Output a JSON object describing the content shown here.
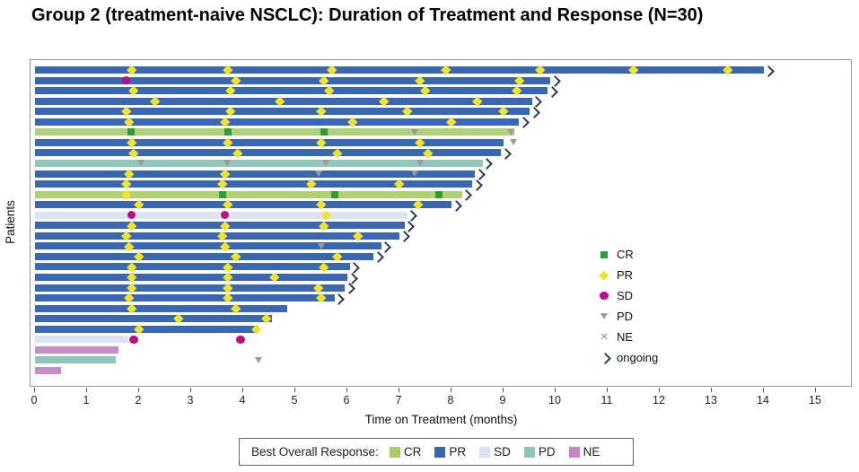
{
  "title": "Group 2 (treatment-naive NSCLC): Duration of Treatment and Response (N=30)",
  "chart_data": {
    "type": "swimmer",
    "title": "Group 2 (treatment-naive NSCLC): Duration of Treatment and Response (N=30)",
    "xlabel": "Time on Treatment (months)",
    "ylabel": "Patients",
    "xlim": [
      0,
      15.7
    ],
    "xticks": [
      0,
      1,
      2,
      3,
      4,
      5,
      6,
      7,
      8,
      9,
      10,
      11,
      12,
      13,
      14,
      15
    ],
    "grid": false,
    "bar_colors": {
      "CR": "#AFCF7B",
      "PR": "#3B67AF",
      "SD": "#DCE4F1",
      "PD": "#93C5BB",
      "NE": "#C48FC4"
    },
    "marker_colors": {
      "CR": "#2E9D38",
      "PR": "#F2E32E",
      "SD": "#BB0D84",
      "PD": "#9A9A9A",
      "arrow": "#2E3B52"
    },
    "marker_legend": {
      "position": "center-right",
      "items": [
        {
          "symbol": "square",
          "label": "CR"
        },
        {
          "symbol": "diamond",
          "label": "PR"
        },
        {
          "symbol": "circle",
          "label": "SD"
        },
        {
          "symbol": "triangle",
          "label": "PD"
        },
        {
          "symbol": "cross",
          "label": "NE"
        },
        {
          "symbol": "chevron",
          "label": "ongoing"
        }
      ]
    },
    "bar_legend": {
      "title": "Best Overall Response:",
      "entries": [
        {
          "label": "CR",
          "color": "#A9CC6A"
        },
        {
          "label": "PR",
          "color": "#3B67AF"
        },
        {
          "label": "SD",
          "color": "#D9E2F2"
        },
        {
          "label": "PD",
          "color": "#8FC5BA"
        },
        {
          "label": "NE",
          "color": "#C287C2"
        }
      ]
    },
    "patients": [
      {
        "response": "PR",
        "months": 14.0,
        "ongoing": true,
        "assessments": [
          {
            "month": 1.85,
            "result": "PR"
          },
          {
            "month": 3.7,
            "result": "PR"
          },
          {
            "month": 5.7,
            "result": "PR"
          },
          {
            "month": 7.9,
            "result": "PR"
          },
          {
            "month": 9.7,
            "result": "PR"
          },
          {
            "month": 11.5,
            "result": "PR"
          },
          {
            "month": 13.3,
            "result": "PR"
          }
        ]
      },
      {
        "response": "PR",
        "months": 9.9,
        "ongoing": true,
        "assessments": [
          {
            "month": 1.75,
            "result": "SD"
          },
          {
            "month": 3.85,
            "result": "PR"
          },
          {
            "month": 5.55,
            "result": "PR"
          },
          {
            "month": 7.4,
            "result": "PR"
          },
          {
            "month": 9.3,
            "result": "PR"
          }
        ]
      },
      {
        "response": "PR",
        "months": 9.85,
        "ongoing": true,
        "assessments": [
          {
            "month": 1.9,
            "result": "PR"
          },
          {
            "month": 3.75,
            "result": "PR"
          },
          {
            "month": 5.65,
            "result": "PR"
          },
          {
            "month": 7.5,
            "result": "PR"
          },
          {
            "month": 9.25,
            "result": "PR"
          }
        ]
      },
      {
        "response": "PR",
        "months": 9.55,
        "ongoing": true,
        "assessments": [
          {
            "month": 2.3,
            "result": "PR"
          },
          {
            "month": 4.7,
            "result": "PR"
          },
          {
            "month": 6.7,
            "result": "PR"
          },
          {
            "month": 8.5,
            "result": "PR"
          }
        ]
      },
      {
        "response": "PR",
        "months": 9.5,
        "ongoing": true,
        "assessments": [
          {
            "month": 1.75,
            "result": "PR"
          },
          {
            "month": 3.75,
            "result": "PR"
          },
          {
            "month": 5.5,
            "result": "PR"
          },
          {
            "month": 7.15,
            "result": "PR"
          },
          {
            "month": 9.0,
            "result": "PR"
          }
        ]
      },
      {
        "response": "PR",
        "months": 9.3,
        "ongoing": true,
        "assessments": [
          {
            "month": 1.8,
            "result": "PR"
          },
          {
            "month": 3.65,
            "result": "PR"
          },
          {
            "month": 6.1,
            "result": "PR"
          },
          {
            "month": 8.0,
            "result": "PR"
          }
        ]
      },
      {
        "response": "CR",
        "months": 9.2,
        "ongoing": false,
        "assessments": [
          {
            "month": 1.85,
            "result": "CR"
          },
          {
            "month": 3.7,
            "result": "CR"
          },
          {
            "month": 5.55,
            "result": "CR"
          },
          {
            "month": 7.3,
            "result": "PD"
          },
          {
            "month": 9.15,
            "result": "PD"
          }
        ]
      },
      {
        "response": "PR",
        "months": 9.0,
        "ongoing": false,
        "assessments": [
          {
            "month": 1.85,
            "result": "PR"
          },
          {
            "month": 3.7,
            "result": "PR"
          },
          {
            "month": 5.5,
            "result": "PR"
          },
          {
            "month": 7.4,
            "result": "PR"
          },
          {
            "month": 9.2,
            "result": "PD"
          }
        ]
      },
      {
        "response": "PR",
        "months": 8.95,
        "ongoing": true,
        "assessments": [
          {
            "month": 1.9,
            "result": "PR"
          },
          {
            "month": 3.9,
            "result": "PR"
          },
          {
            "month": 5.8,
            "result": "PR"
          },
          {
            "month": 7.55,
            "result": "PR"
          }
        ]
      },
      {
        "response": "PD",
        "months": 8.6,
        "ongoing": true,
        "assessments": [
          {
            "month": 2.05,
            "result": "PD"
          },
          {
            "month": 3.7,
            "result": "PD"
          },
          {
            "month": 5.6,
            "result": "PD"
          },
          {
            "month": 7.4,
            "result": "PD"
          }
        ]
      },
      {
        "response": "PR",
        "months": 8.45,
        "ongoing": true,
        "assessments": [
          {
            "month": 1.8,
            "result": "PR"
          },
          {
            "month": 3.65,
            "result": "PR"
          },
          {
            "month": 5.45,
            "result": "PD"
          },
          {
            "month": 7.3,
            "result": "PD"
          }
        ]
      },
      {
        "response": "PR",
        "months": 8.4,
        "ongoing": true,
        "assessments": [
          {
            "month": 1.75,
            "result": "PR"
          },
          {
            "month": 3.6,
            "result": "PR"
          },
          {
            "month": 5.3,
            "result": "PR"
          },
          {
            "month": 7.0,
            "result": "PR"
          }
        ]
      },
      {
        "response": "CR",
        "months": 8.2,
        "ongoing": true,
        "assessments": [
          {
            "month": 1.75,
            "result": "PR"
          },
          {
            "month": 3.6,
            "result": "CR"
          },
          {
            "month": 5.75,
            "result": "CR"
          },
          {
            "month": 7.75,
            "result": "CR"
          }
        ]
      },
      {
        "response": "PR",
        "months": 8.0,
        "ongoing": true,
        "assessments": [
          {
            "month": 2.0,
            "result": "PR"
          },
          {
            "month": 3.7,
            "result": "PR"
          },
          {
            "month": 5.5,
            "result": "PR"
          },
          {
            "month": 7.35,
            "result": "PR"
          }
        ]
      },
      {
        "response": "SD",
        "months": 7.15,
        "ongoing": true,
        "assessments": [
          {
            "month": 1.85,
            "result": "SD"
          },
          {
            "month": 3.65,
            "result": "SD"
          },
          {
            "month": 5.6,
            "result": "PR"
          }
        ]
      },
      {
        "response": "PR",
        "months": 7.1,
        "ongoing": true,
        "assessments": [
          {
            "month": 1.85,
            "result": "PR"
          },
          {
            "month": 3.65,
            "result": "PR"
          },
          {
            "month": 5.55,
            "result": "PR"
          }
        ]
      },
      {
        "response": "PR",
        "months": 7.0,
        "ongoing": true,
        "assessments": [
          {
            "month": 1.75,
            "result": "PR"
          },
          {
            "month": 3.6,
            "result": "PR"
          },
          {
            "month": 6.2,
            "result": "PR"
          }
        ]
      },
      {
        "response": "PR",
        "months": 6.65,
        "ongoing": true,
        "assessments": [
          {
            "month": 1.8,
            "result": "PR"
          },
          {
            "month": 3.65,
            "result": "PR"
          },
          {
            "month": 5.5,
            "result": "PD"
          }
        ]
      },
      {
        "response": "PR",
        "months": 6.5,
        "ongoing": true,
        "assessments": [
          {
            "month": 2.0,
            "result": "PR"
          },
          {
            "month": 3.85,
            "result": "PR"
          },
          {
            "month": 5.8,
            "result": "PR"
          }
        ]
      },
      {
        "response": "PR",
        "months": 6.05,
        "ongoing": true,
        "assessments": [
          {
            "month": 1.85,
            "result": "PR"
          },
          {
            "month": 3.7,
            "result": "PR"
          },
          {
            "month": 5.55,
            "result": "PR"
          }
        ]
      },
      {
        "response": "PR",
        "months": 6.0,
        "ongoing": true,
        "assessments": [
          {
            "month": 1.85,
            "result": "PR"
          },
          {
            "month": 3.7,
            "result": "PR"
          },
          {
            "month": 4.6,
            "result": "PR"
          }
        ]
      },
      {
        "response": "PR",
        "months": 5.95,
        "ongoing": true,
        "assessments": [
          {
            "month": 1.85,
            "result": "PR"
          },
          {
            "month": 3.7,
            "result": "PR"
          },
          {
            "month": 5.45,
            "result": "PR"
          }
        ]
      },
      {
        "response": "PR",
        "months": 5.75,
        "ongoing": true,
        "assessments": [
          {
            "month": 1.8,
            "result": "PR"
          },
          {
            "month": 3.7,
            "result": "PR"
          },
          {
            "month": 5.5,
            "result": "PR"
          }
        ]
      },
      {
        "response": "PR",
        "months": 4.85,
        "ongoing": false,
        "assessments": [
          {
            "month": 1.85,
            "result": "PR"
          },
          {
            "month": 3.85,
            "result": "PR"
          }
        ]
      },
      {
        "response": "PR",
        "months": 4.55,
        "ongoing": false,
        "assessments": [
          {
            "month": 2.75,
            "result": "PR"
          },
          {
            "month": 4.45,
            "result": "PR"
          }
        ]
      },
      {
        "response": "PR",
        "months": 4.3,
        "ongoing": false,
        "assessments": [
          {
            "month": 2.0,
            "result": "PR"
          },
          {
            "month": 4.25,
            "result": "PR"
          }
        ]
      },
      {
        "response": "SD",
        "months": 1.8,
        "ongoing": false,
        "assessments": [
          {
            "month": 1.9,
            "result": "SD"
          },
          {
            "month": 3.95,
            "result": "SD"
          }
        ]
      },
      {
        "response": "NE",
        "months": 1.6,
        "ongoing": false,
        "assessments": []
      },
      {
        "response": "PD",
        "months": 1.55,
        "ongoing": false,
        "assessments": [
          {
            "month": 4.3,
            "result": "PD"
          }
        ]
      },
      {
        "response": "NE",
        "months": 0.5,
        "ongoing": false,
        "assessments": []
      }
    ]
  }
}
